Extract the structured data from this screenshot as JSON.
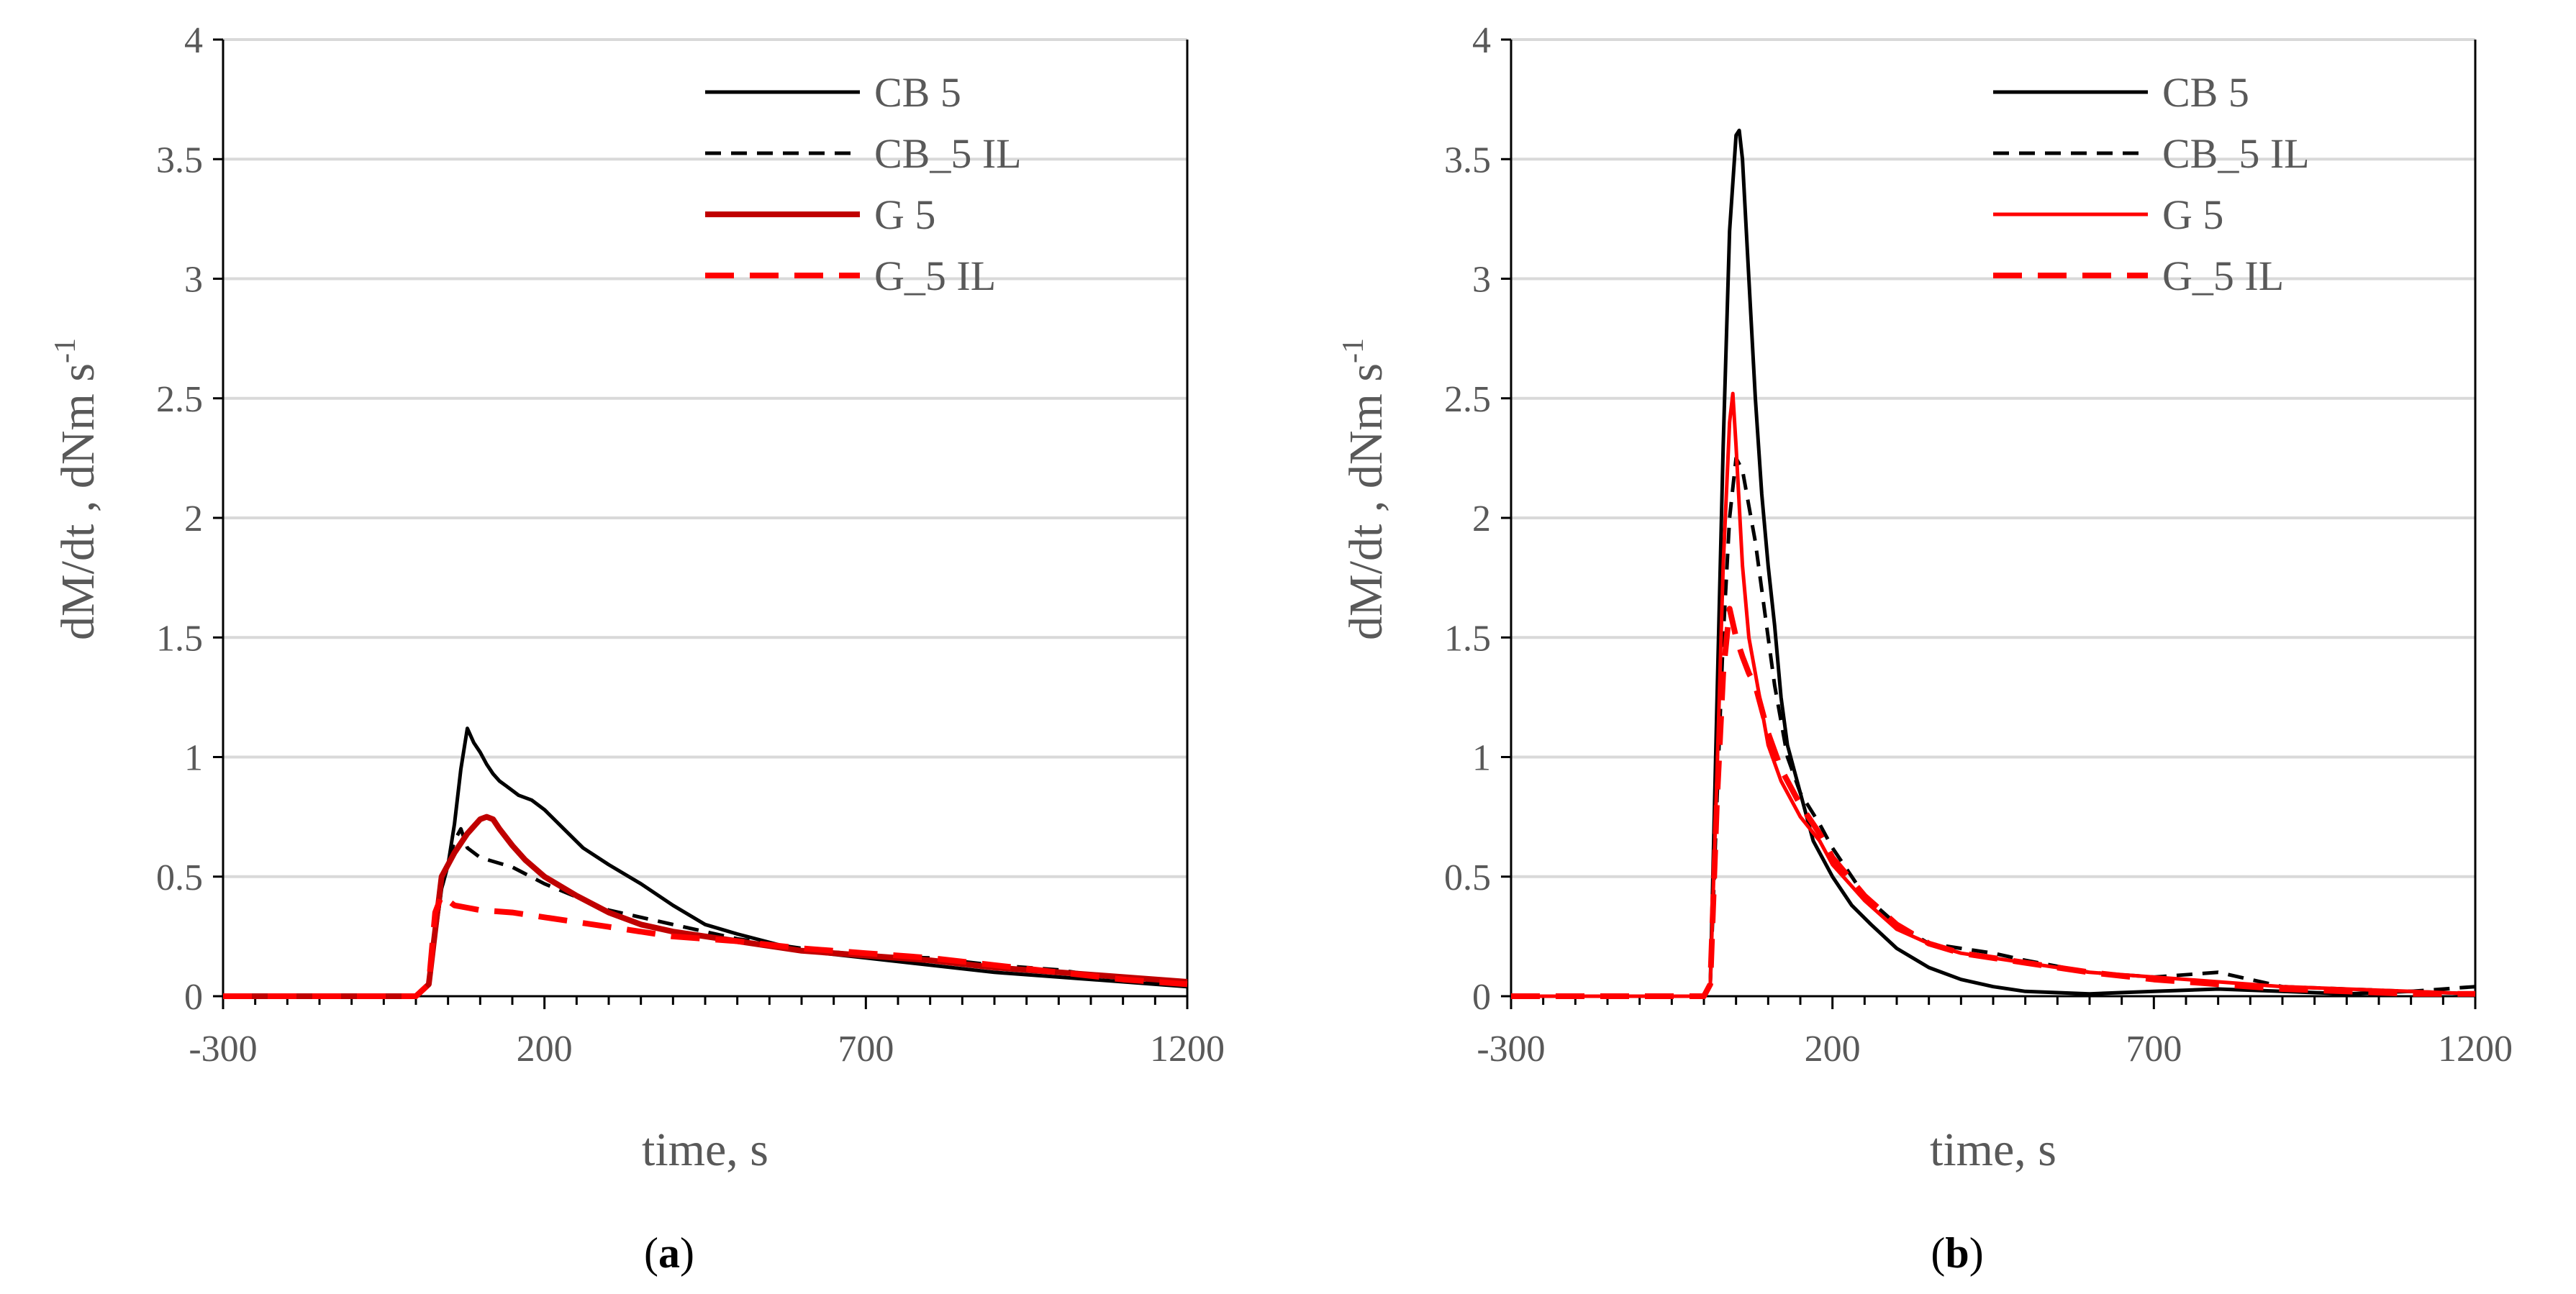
{
  "chart_data": [
    {
      "type": "line",
      "panel_label": "a",
      "xlabel": "time, s",
      "ylabel_main": "dM/dt ,  dNm s",
      "ylabel_sup": "-1",
      "xlim": [
        -300,
        1200
      ],
      "ylim": [
        0,
        4
      ],
      "xticks": [
        "-300",
        "200",
        "700",
        "1200"
      ],
      "yticks": [
        "0",
        "0.5",
        "1",
        "1.5",
        "2",
        "2.5",
        "3",
        "3.5",
        "4"
      ],
      "legend_position": "top-right",
      "series": [
        {
          "name": "CB 5",
          "color": "#000000",
          "dash": "solid",
          "width": "normal",
          "x": [
            -300,
            0,
            20,
            40,
            50,
            60,
            70,
            80,
            90,
            100,
            110,
            120,
            130,
            140,
            150,
            160,
            180,
            200,
            230,
            260,
            300,
            350,
            400,
            450,
            500,
            600,
            700,
            800,
            900,
            1000,
            1100,
            1200
          ],
          "y": [
            0,
            0,
            0.05,
            0.45,
            0.55,
            0.72,
            0.95,
            1.12,
            1.06,
            1.02,
            0.97,
            0.93,
            0.9,
            0.88,
            0.86,
            0.84,
            0.82,
            0.78,
            0.7,
            0.62,
            0.55,
            0.47,
            0.38,
            0.3,
            0.26,
            0.19,
            0.16,
            0.13,
            0.1,
            0.08,
            0.06,
            0.04
          ]
        },
        {
          "name": "CB_5 IL",
          "color": "#000000",
          "dash": "dash",
          "width": "normal",
          "x": [
            -300,
            0,
            20,
            40,
            50,
            60,
            70,
            80,
            100,
            150,
            200,
            300,
            400,
            500,
            600,
            700,
            800,
            900,
            1000,
            1100,
            1200
          ],
          "y": [
            0,
            0,
            0.05,
            0.45,
            0.55,
            0.65,
            0.7,
            0.62,
            0.58,
            0.54,
            0.47,
            0.36,
            0.3,
            0.24,
            0.2,
            0.17,
            0.16,
            0.13,
            0.11,
            0.07,
            0.05
          ]
        },
        {
          "name": "G 5",
          "color": "#c00000",
          "dash": "solid",
          "width": "thick",
          "x": [
            -300,
            0,
            20,
            40,
            60,
            80,
            100,
            110,
            120,
            130,
            150,
            170,
            200,
            250,
            300,
            350,
            400,
            500,
            600,
            700,
            800,
            900,
            1000,
            1100,
            1200
          ],
          "y": [
            0,
            0,
            0.05,
            0.5,
            0.6,
            0.68,
            0.74,
            0.75,
            0.74,
            0.7,
            0.63,
            0.57,
            0.5,
            0.42,
            0.35,
            0.3,
            0.27,
            0.23,
            0.19,
            0.17,
            0.15,
            0.12,
            0.1,
            0.08,
            0.06
          ]
        },
        {
          "name": "G_5 IL",
          "color": "#ff0000",
          "dash": "longdash",
          "width": "thick",
          "x": [
            -300,
            0,
            20,
            30,
            40,
            50,
            60,
            80,
            100,
            150,
            200,
            250,
            300,
            400,
            500,
            600,
            700,
            800,
            900,
            1000,
            1100,
            1200
          ],
          "y": [
            0,
            0,
            0.05,
            0.35,
            0.42,
            0.4,
            0.38,
            0.37,
            0.36,
            0.35,
            0.33,
            0.31,
            0.29,
            0.25,
            0.23,
            0.2,
            0.18,
            0.16,
            0.13,
            0.1,
            0.07,
            0.05
          ]
        }
      ]
    },
    {
      "type": "line",
      "panel_label": "b",
      "xlabel": "time, s",
      "ylabel_main": "dM/dt ,  dNm s",
      "ylabel_sup": "-1",
      "xlim": [
        -300,
        1200
      ],
      "ylim": [
        0,
        4
      ],
      "xticks": [
        "-300",
        "200",
        "700",
        "1200"
      ],
      "yticks": [
        "0",
        "0.5",
        "1",
        "1.5",
        "2",
        "2.5",
        "3",
        "3.5",
        "4"
      ],
      "legend_position": "top-right",
      "series": [
        {
          "name": "CB 5",
          "color": "#000000",
          "dash": "solid",
          "width": "normal",
          "x": [
            -300,
            0,
            10,
            20,
            30,
            40,
            50,
            55,
            60,
            70,
            80,
            90,
            100,
            110,
            120,
            130,
            150,
            170,
            200,
            230,
            260,
            300,
            350,
            400,
            450,
            500,
            600,
            700,
            800,
            900,
            1000,
            1100,
            1200
          ],
          "y": [
            0,
            0,
            0.05,
            1.2,
            2.3,
            3.2,
            3.6,
            3.62,
            3.5,
            3.0,
            2.5,
            2.1,
            1.8,
            1.55,
            1.25,
            1.05,
            0.85,
            0.65,
            0.5,
            0.38,
            0.3,
            0.2,
            0.12,
            0.07,
            0.04,
            0.02,
            0.01,
            0.02,
            0.03,
            0.02,
            0.01,
            0.02,
            0.01
          ]
        },
        {
          "name": "CB_5 IL",
          "color": "#000000",
          "dash": "dash",
          "width": "normal",
          "x": [
            -300,
            0,
            10,
            20,
            30,
            40,
            50,
            60,
            70,
            80,
            90,
            100,
            110,
            130,
            150,
            180,
            200,
            250,
            300,
            350,
            400,
            450,
            500,
            600,
            700,
            800,
            900,
            1000,
            1100,
            1200
          ],
          "y": [
            0,
            0,
            0.05,
            0.8,
            1.5,
            2.0,
            2.25,
            2.2,
            2.05,
            1.9,
            1.7,
            1.5,
            1.3,
            1.0,
            0.85,
            0.72,
            0.62,
            0.42,
            0.3,
            0.22,
            0.2,
            0.18,
            0.15,
            0.1,
            0.08,
            0.1,
            0.04,
            0.03,
            0.02,
            0.04
          ]
        },
        {
          "name": "G 5",
          "color": "#ff0000",
          "dash": "solid",
          "width": "normal",
          "x": [
            -300,
            0,
            10,
            20,
            30,
            40,
            45,
            50,
            60,
            70,
            80,
            90,
            100,
            120,
            150,
            180,
            200,
            250,
            300,
            350,
            400,
            500,
            600,
            700,
            800,
            900,
            1000,
            1100,
            1200
          ],
          "y": [
            0,
            0,
            0.05,
            0.9,
            1.8,
            2.4,
            2.52,
            2.3,
            1.8,
            1.5,
            1.35,
            1.2,
            1.05,
            0.9,
            0.75,
            0.65,
            0.55,
            0.4,
            0.28,
            0.22,
            0.18,
            0.14,
            0.1,
            0.08,
            0.06,
            0.04,
            0.03,
            0.02,
            0.01
          ]
        },
        {
          "name": "G_5 IL",
          "color": "#ff0000",
          "dash": "longdash",
          "width": "thick",
          "x": [
            -300,
            0,
            10,
            20,
            30,
            40,
            50,
            60,
            70,
            80,
            100,
            120,
            150,
            180,
            200,
            250,
            300,
            350,
            400,
            500,
            600,
            700,
            800,
            900,
            1000,
            1100,
            1200
          ],
          "y": [
            0,
            0,
            0.05,
            0.8,
            1.35,
            1.62,
            1.5,
            1.42,
            1.35,
            1.3,
            1.1,
            0.95,
            0.8,
            0.68,
            0.58,
            0.42,
            0.3,
            0.22,
            0.18,
            0.14,
            0.1,
            0.07,
            0.05,
            0.03,
            0.02,
            0.01,
            0.01
          ]
        }
      ]
    }
  ]
}
